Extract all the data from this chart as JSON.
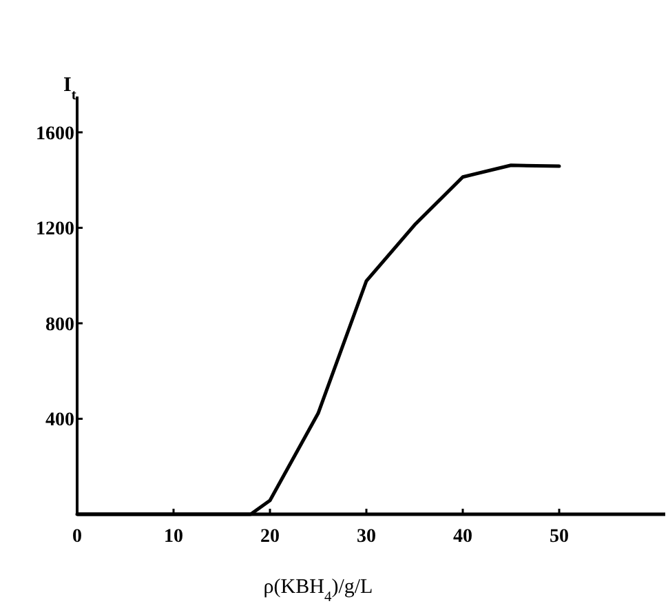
{
  "chart_data": {
    "type": "line",
    "xlabel": "ρ(KBH$_{4}$)/g/L",
    "ylabel": "I$_{t}$",
    "x": [
      0,
      18,
      20,
      25,
      30,
      35,
      40,
      45,
      50
    ],
    "series": [
      {
        "color": "#000000",
        "values": [
          0,
          0,
          58,
          423,
          977,
          1212,
          1413,
          1462,
          1458
        ]
      }
    ],
    "xlim": [
      0,
      61
    ],
    "ylim": [
      0,
      1750
    ],
    "xticks": [
      0,
      10,
      20,
      30,
      40,
      50
    ],
    "yticks": [
      400,
      800,
      1200,
      1600
    ],
    "grid": false,
    "marker": "none",
    "line_style": "solid"
  }
}
